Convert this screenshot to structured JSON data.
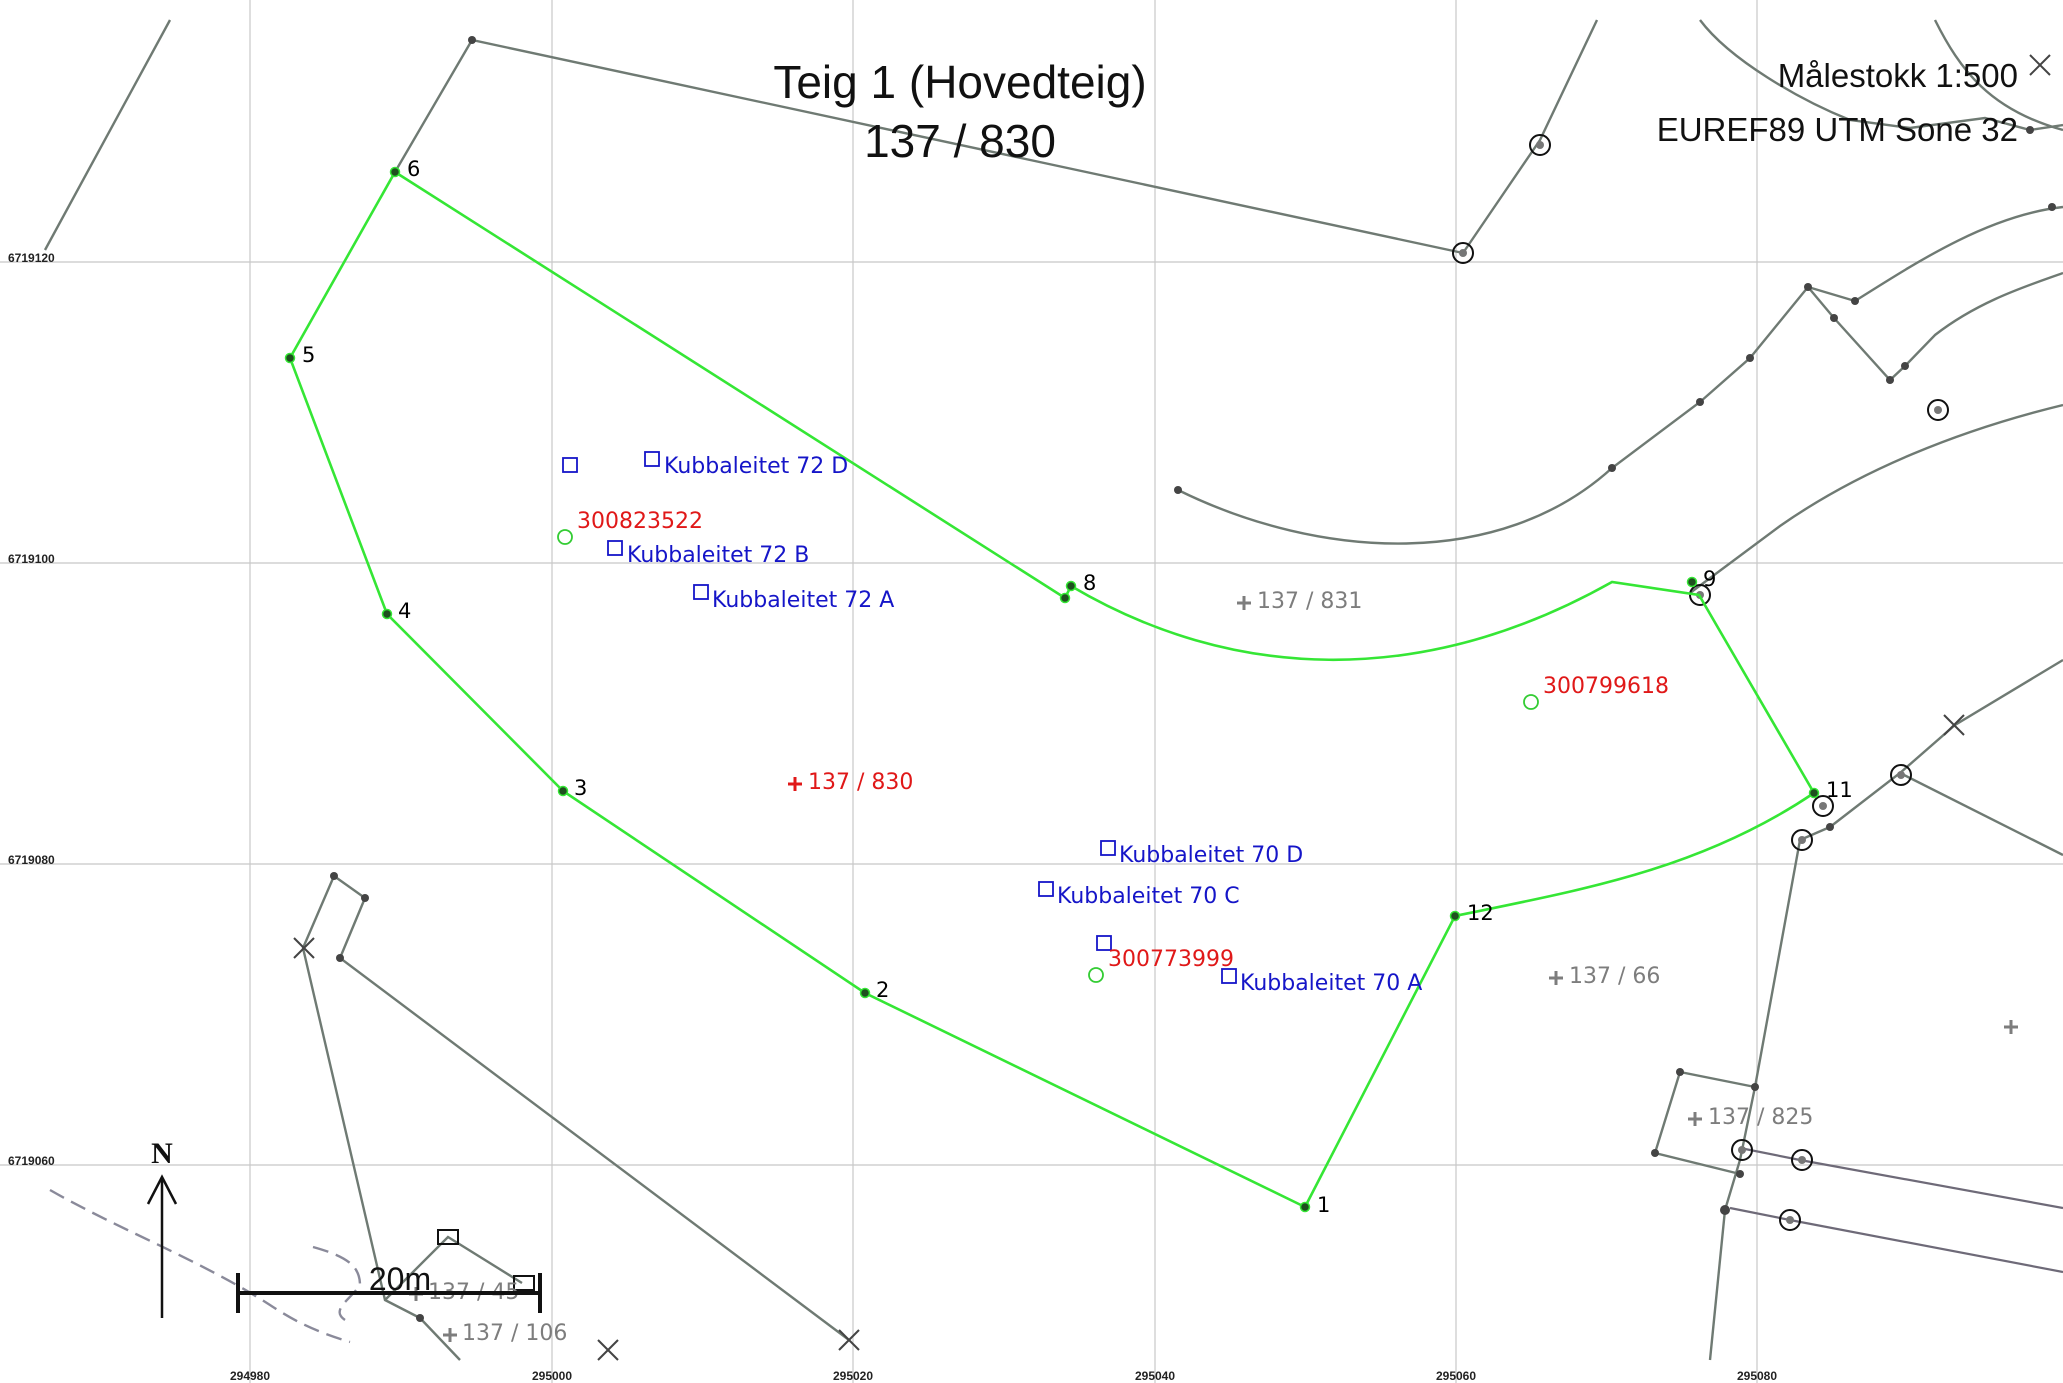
{
  "title": {
    "line1": "Teig 1 (Hovedteig)",
    "line2": "137 / 830"
  },
  "scale_label": "Målestokk 1:500",
  "crs_label": "EUREF89 UTM Sone 32",
  "north_label": "N",
  "scalebar_label": "20m",
  "x_ticks": [
    "294980",
    "295000",
    "295020",
    "295040",
    "295060",
    "295080"
  ],
  "y_ticks": [
    "6719120",
    "6719100",
    "6719080",
    "6719060"
  ],
  "vertices": [
    "1",
    "2",
    "3",
    "4",
    "5",
    "6",
    "8",
    "9",
    "11",
    "12"
  ],
  "addresses": [
    "Kubbaleitet 72 D",
    "Kubbaleitet 72 B",
    "Kubbaleitet 72 A",
    "Kubbaleitet 70 D",
    "Kubbaleitet 70 C",
    "Kubbaleitet 70 A"
  ],
  "building_ids": [
    "300823522",
    "300799618",
    "300773999"
  ],
  "main_parcel": "137 / 830",
  "parcels": [
    "137 / 831",
    "137 / 66",
    "137 / 825",
    "137 / 45",
    "137 / 106"
  ],
  "colors": {
    "boundary": "#35e635",
    "address": "#1515c8",
    "building_id": "#e01818",
    "parcel": "#7d7d7d"
  }
}
